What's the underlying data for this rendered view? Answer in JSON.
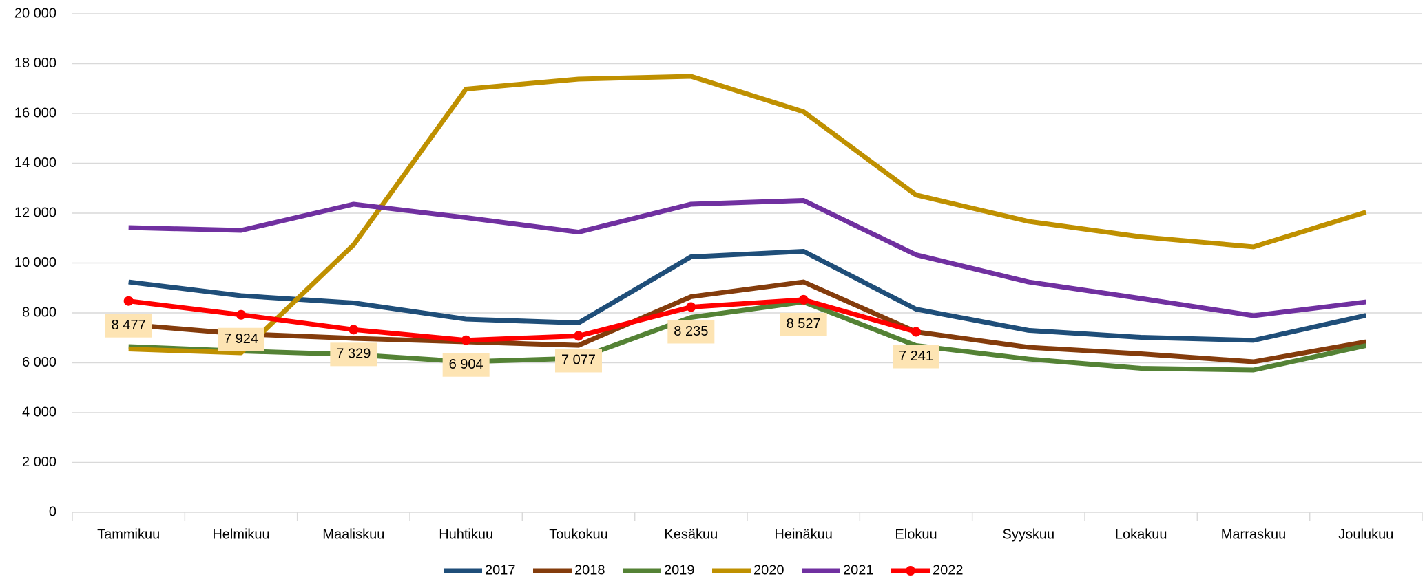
{
  "chart_data": {
    "type": "line",
    "categories": [
      "Tammikuu",
      "Helmikuu",
      "Maaliskuu",
      "Huhtikuu",
      "Toukokuu",
      "Kesäkuu",
      "Heinäkuu",
      "Elokuu",
      "Syyskuu",
      "Lokakuu",
      "Marraskuu",
      "Joulukuu"
    ],
    "series": [
      {
        "name": "2017",
        "color": "#1f4e79",
        "values": [
          9240,
          8690,
          8400,
          7750,
          7600,
          10250,
          10470,
          8150,
          7300,
          7020,
          6900,
          7900
        ]
      },
      {
        "name": "2018",
        "color": "#843c0c",
        "values": [
          7530,
          7160,
          6980,
          6840,
          6700,
          8650,
          9240,
          7240,
          6620,
          6360,
          6040,
          6840
        ]
      },
      {
        "name": "2019",
        "color": "#548235",
        "values": [
          6650,
          6470,
          6330,
          6040,
          6180,
          7820,
          8440,
          6690,
          6150,
          5780,
          5710,
          6690
        ]
      },
      {
        "name": "2020",
        "color": "#bf9000",
        "values": [
          6550,
          6400,
          10730,
          16980,
          17380,
          17490,
          16070,
          12730,
          11670,
          11050,
          10650,
          12040
        ]
      },
      {
        "name": "2021",
        "color": "#7030a0",
        "values": [
          11420,
          11310,
          12360,
          11820,
          11240,
          12360,
          12510,
          10330,
          9240,
          8580,
          7890,
          8440
        ]
      },
      {
        "name": "2022",
        "color": "#ff0000",
        "markers": true,
        "values": [
          8477,
          7924,
          7329,
          6904,
          7077,
          8235,
          8527,
          7241,
          null,
          null,
          null,
          null
        ],
        "value_labels": [
          "8 477",
          "7 924",
          "7 329",
          "6 904",
          "7 077",
          "8 235",
          "8 527",
          "7 241",
          null,
          null,
          null,
          null
        ]
      }
    ],
    "ylim": [
      0,
      20000
    ],
    "yticks": [
      0,
      {
        "value": 2000,
        "label": "2 000"
      },
      {
        "value": 4000,
        "label": "4 000"
      },
      {
        "value": 6000,
        "label": "6 000"
      },
      {
        "value": 8000,
        "label": "8 000"
      },
      {
        "value": 10000,
        "label": "10 000"
      },
      {
        "value": 12000,
        "label": "12 000"
      },
      {
        "value": 14000,
        "label": "14 000"
      },
      {
        "value": 16000,
        "label": "16 000"
      },
      {
        "value": 18000,
        "label": "18 000"
      },
      {
        "value": 20000,
        "label": "20 000"
      }
    ],
    "grid": true,
    "legend": "bottom"
  }
}
